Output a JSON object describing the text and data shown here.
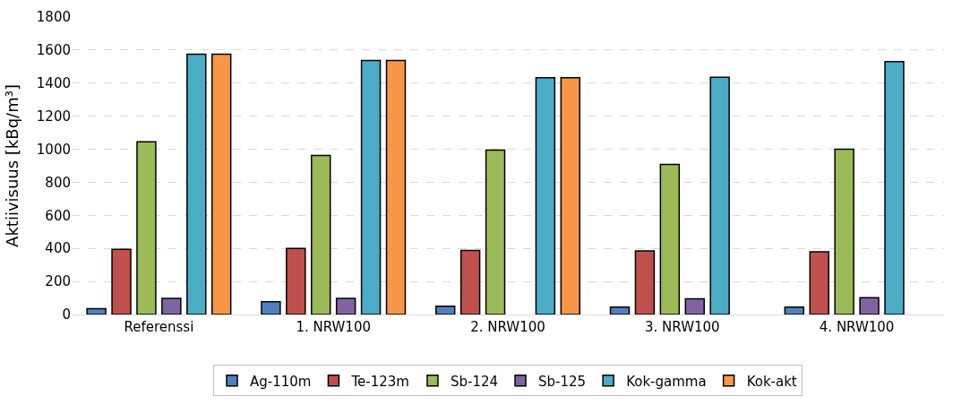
{
  "chart_data": {
    "type": "bar",
    "ylabel": "Aktiivisuus [kBq/m³]",
    "categories": [
      "Referenssi",
      "1. NRW100",
      "2. NRW100",
      "3. NRW100",
      "4. NRW100"
    ],
    "series": [
      {
        "name": "Ag-110m",
        "color": "#4f81bd",
        "values": [
          35,
          77,
          50,
          45,
          45
        ]
      },
      {
        "name": "Te-123m",
        "color": "#c0504d",
        "values": [
          395,
          400,
          388,
          385,
          380
        ]
      },
      {
        "name": "Sb-124",
        "color": "#9bbb59",
        "values": [
          1045,
          963,
          995,
          908,
          1000
        ]
      },
      {
        "name": "Sb-125",
        "color": "#8064a2",
        "values": [
          97,
          97,
          null,
          95,
          102
        ]
      },
      {
        "name": "Kok-gamma",
        "color": "#4bacc6",
        "values": [
          1575,
          1537,
          1433,
          1435,
          1530
        ]
      },
      {
        "name": "Kok-akt",
        "color": "#f79646",
        "values": [
          1575,
          1537,
          1433,
          null,
          null
        ]
      }
    ],
    "ylim": [
      0,
      1800
    ],
    "yticks": [
      0,
      200,
      400,
      600,
      800,
      1000,
      1200,
      1400,
      1600,
      1800
    ],
    "grid": "y",
    "legend": "bottom"
  }
}
